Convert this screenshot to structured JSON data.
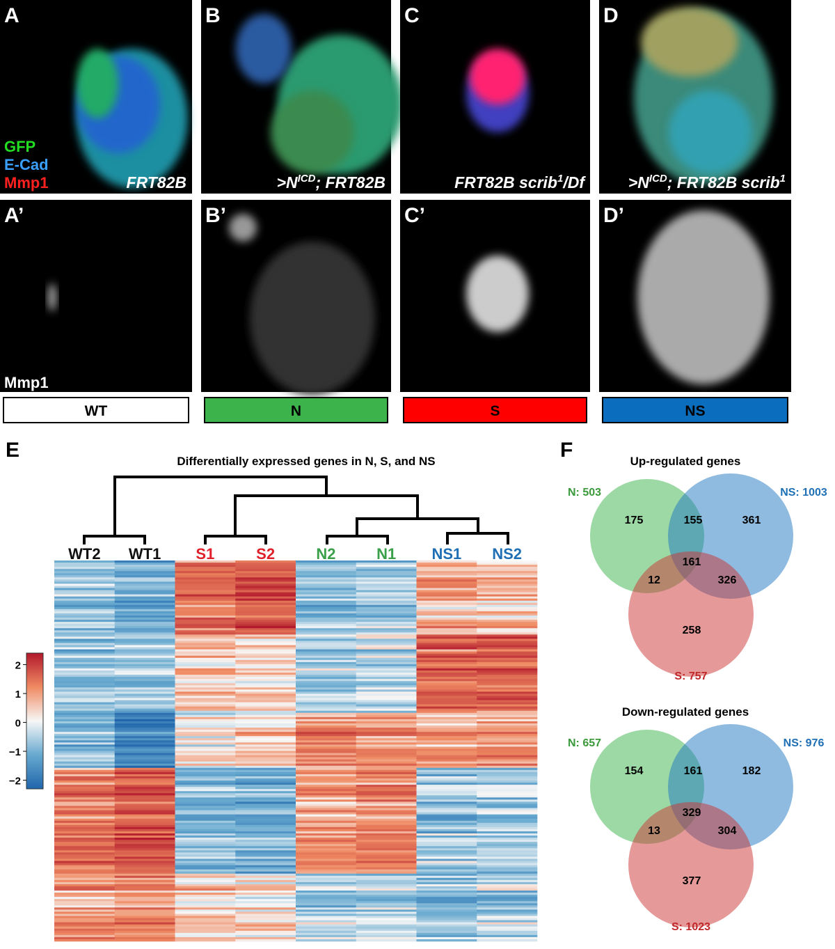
{
  "images": [
    {
      "label": "A",
      "genotype": [
        {
          "t": "FRT82B"
        }
      ],
      "stain_legend": [
        {
          "name": "GFP",
          "color": "#22dd22"
        },
        {
          "name": "E-Cad",
          "color": "#3aa0ff"
        },
        {
          "name": "Mmp1",
          "color": "#ff2020"
        }
      ]
    },
    {
      "label": "B",
      "genotype": [
        {
          "t": ">N"
        },
        {
          "sup": "ICD"
        },
        {
          "t": "; FRT82B"
        }
      ]
    },
    {
      "label": "C",
      "genotype": [
        {
          "t": "FRT82B scrib"
        },
        {
          "sup": "1"
        },
        {
          "t": "/Df"
        }
      ]
    },
    {
      "label": "D",
      "genotype": [
        {
          "t": ">N"
        },
        {
          "sup": "ICD"
        },
        {
          "t": "; FRT82B scrib"
        },
        {
          "sup": "1"
        }
      ]
    },
    {
      "label": "A’",
      "stain": "Mmp1"
    },
    {
      "label": "B’"
    },
    {
      "label": "C’"
    },
    {
      "label": "D’"
    }
  ],
  "groups": [
    {
      "name": "WT",
      "color": "#ffffff"
    },
    {
      "name": "N",
      "color": "#3cb44b"
    },
    {
      "name": "S",
      "color": "#ff0000"
    },
    {
      "name": "NS",
      "color": "#0a6dbd"
    }
  ],
  "heatmap": {
    "label": "E",
    "title": "Differentially expressed genes in N, S, and NS",
    "samples": [
      {
        "name": "WT2",
        "color": "#111111"
      },
      {
        "name": "WT1",
        "color": "#111111"
      },
      {
        "name": "S1",
        "color": "#e0202a"
      },
      {
        "name": "S2",
        "color": "#e0202a"
      },
      {
        "name": "N2",
        "color": "#3aa14a"
      },
      {
        "name": "N1",
        "color": "#3aa14a"
      },
      {
        "name": "NS1",
        "color": "#1f6fb5"
      },
      {
        "name": "NS2",
        "color": "#1f6fb5"
      }
    ],
    "colorbar": {
      "clim": [
        -2.3,
        2.4
      ],
      "ticks": [
        2,
        1,
        0,
        {
          "value": -1,
          "label": "−1"
        },
        {
          "value": -2,
          "label": "−2"
        }
      ]
    }
  },
  "venn": {
    "label": "F",
    "diagrams": [
      {
        "title": "Up-regulated genes",
        "sets": [
          {
            "label": "N: 503",
            "color": "#3a9a3a"
          },
          {
            "label": "NS: 1003",
            "color": "#1f6fb5"
          },
          {
            "label": "S: 757",
            "color": "#c0282a"
          }
        ],
        "regions": {
          "N_only": "175",
          "N_NS": "155",
          "NS_only": "361",
          "all": "161",
          "N_S": "12",
          "NS_S": "326",
          "S_only": "258"
        }
      },
      {
        "title": "Down-regulated genes",
        "sets": [
          {
            "label": "N: 657",
            "color": "#3a9a3a"
          },
          {
            "label": "NS: 976",
            "color": "#1f6fb5"
          },
          {
            "label": "S: 1023",
            "color": "#c0282a"
          }
        ],
        "regions": {
          "N_only": "154",
          "N_NS": "161",
          "NS_only": "182",
          "all": "329",
          "N_S": "13",
          "NS_S": "304",
          "S_only": "377"
        }
      }
    ]
  }
}
